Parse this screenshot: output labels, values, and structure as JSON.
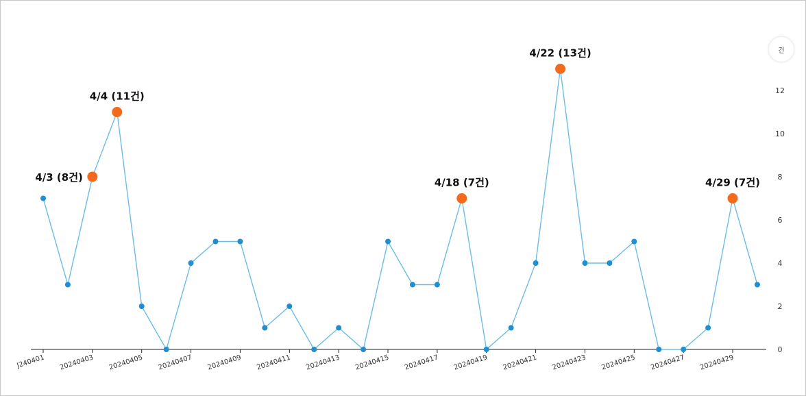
{
  "unit_label": "건",
  "chart_data": {
    "type": "line",
    "title": "",
    "xlabel": "",
    "ylabel": "건",
    "ylim": [
      0,
      14
    ],
    "yticks": [
      0,
      2,
      4,
      6,
      8,
      10,
      12
    ],
    "x_tick_labels": [
      "J240401",
      "20240403",
      "20240405",
      "20240407",
      "20240409",
      "20240411",
      "20240413",
      "20240415",
      "20240417",
      "20240419",
      "20240421",
      "20240423",
      "20240425",
      "20240427",
      "20240429"
    ],
    "x": [
      "20240401",
      "20240402",
      "20240403",
      "20240404",
      "20240405",
      "20240406",
      "20240407",
      "20240408",
      "20240409",
      "20240410",
      "20240411",
      "20240412",
      "20240413",
      "20240414",
      "20240415",
      "20240416",
      "20240417",
      "20240418",
      "20240419",
      "20240420",
      "20240421",
      "20240422",
      "20240423",
      "20240424",
      "20240425",
      "20240426",
      "20240427",
      "20240428",
      "20240429",
      "20240430"
    ],
    "series": [
      {
        "values": [
          7,
          3,
          8,
          11,
          2,
          0,
          4,
          5,
          5,
          1,
          2,
          0,
          1,
          0,
          5,
          3,
          3,
          7,
          0,
          1,
          4,
          13,
          4,
          4,
          5,
          0,
          0,
          1,
          7,
          3
        ]
      }
    ],
    "annotations": [
      {
        "index": 2,
        "text": "4/3 (8건)",
        "align": "left"
      },
      {
        "index": 3,
        "text": "4/4 (11건)",
        "align": "above"
      },
      {
        "index": 17,
        "text": "4/18 (7건)",
        "align": "above"
      },
      {
        "index": 21,
        "text": "4/22 (13건)",
        "align": "above"
      },
      {
        "index": 28,
        "text": "4/29 (7건)",
        "align": "above"
      }
    ],
    "colors": {
      "line": "#6bbde3",
      "point": "#1f8fd0",
      "highlight": "#f26b1d"
    },
    "grid": false
  }
}
